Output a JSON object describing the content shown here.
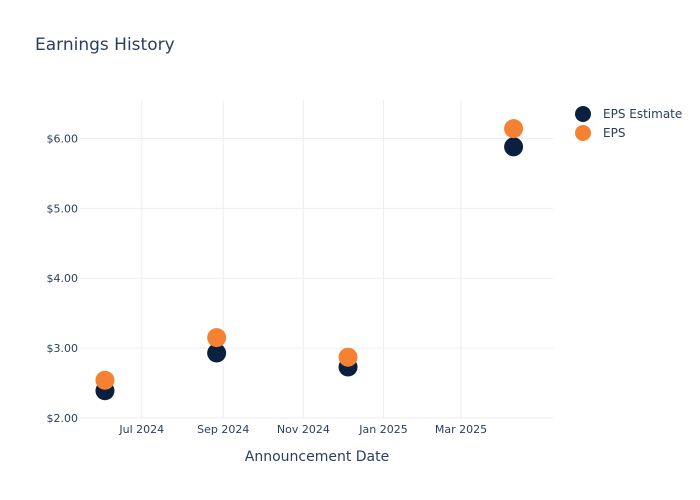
{
  "chart_data": {
    "type": "scatter",
    "title": "Earnings History",
    "xlabel": "Announcement Date",
    "ylabel": "",
    "x_ticks": [
      "Jul 2024",
      "Sep 2024",
      "Nov 2024",
      "Jan 2025",
      "Mar 2025"
    ],
    "y_ticks": [
      "$2.00",
      "$3.00",
      "$4.00",
      "$5.00",
      "$6.00"
    ],
    "ylim": [
      2.0,
      6.55
    ],
    "xlim": [
      "2024-05-15",
      "2025-05-10"
    ],
    "legend_position": "top-right",
    "grid": true,
    "series": [
      {
        "name": "EPS Estimate",
        "color": "#0b1f3f",
        "points": [
          {
            "x": "2024-06-03",
            "y": 2.39
          },
          {
            "x": "2024-08-27",
            "y": 2.93
          },
          {
            "x": "2024-12-05",
            "y": 2.73
          },
          {
            "x": "2025-04-10",
            "y": 5.88
          }
        ]
      },
      {
        "name": "EPS",
        "color": "#f58232",
        "points": [
          {
            "x": "2024-06-03",
            "y": 2.54
          },
          {
            "x": "2024-08-27",
            "y": 3.15
          },
          {
            "x": "2024-12-05",
            "y": 2.87
          },
          {
            "x": "2025-04-10",
            "y": 6.14
          }
        ]
      }
    ]
  }
}
